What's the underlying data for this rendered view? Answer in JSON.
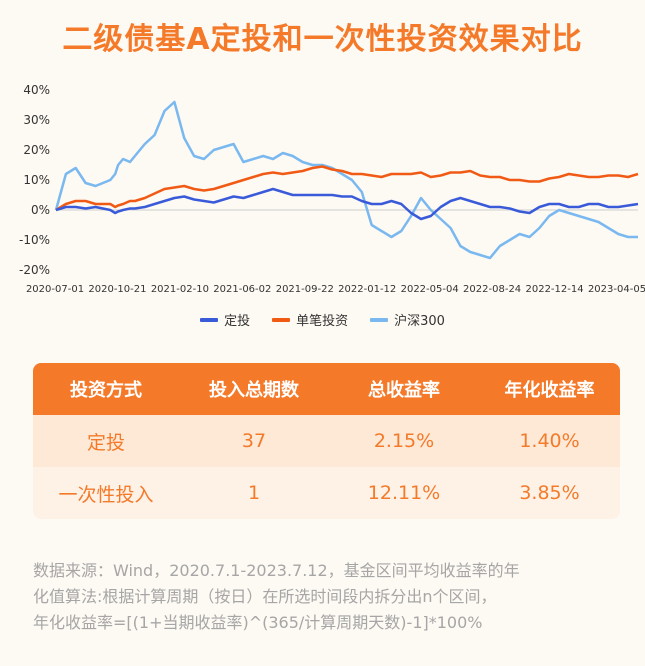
{
  "title": "二级债基A定投和一次性投资效果对比",
  "chart_data": {
    "type": "line",
    "ylim": [
      -20,
      40
    ],
    "yticks": [
      "40%",
      "30%",
      "20%",
      "10%",
      "0%",
      "-10%",
      "-20%"
    ],
    "ytick_values": [
      40,
      30,
      20,
      10,
      0,
      -10,
      -20
    ],
    "xticks": [
      "2020-07-01",
      "2020-10-21",
      "2021-02-10",
      "2021-06-02",
      "2021-09-22",
      "2022-01-12",
      "2022-05-04",
      "2022-08-24",
      "2022-12-14",
      "2023-04-05"
    ],
    "x": [
      0,
      10,
      20,
      30,
      40,
      55,
      60,
      63,
      68,
      75,
      80,
      90,
      100,
      110,
      120,
      130,
      140,
      150,
      160,
      170,
      180,
      190,
      200,
      210,
      220,
      230,
      240,
      250,
      260,
      270,
      280,
      290,
      300,
      310,
      320,
      330,
      340,
      350,
      360,
      370,
      380,
      390,
      400,
      410,
      420,
      430,
      440,
      450,
      460,
      470,
      480,
      490,
      500,
      510,
      520,
      530,
      540,
      550,
      560,
      570,
      580,
      590
    ],
    "series": [
      {
        "name": "定投",
        "color": "#3a5bd9",
        "values": [
          0,
          1,
          1,
          0.5,
          1,
          0,
          -1,
          -0.5,
          0,
          0.5,
          0.5,
          1,
          2,
          3,
          4,
          4.5,
          3.5,
          3,
          2.5,
          3.5,
          4.5,
          4,
          5,
          6,
          7,
          6,
          5,
          5,
          5,
          5,
          5,
          4.5,
          4.5,
          3,
          2,
          2,
          3,
          2,
          -1,
          -3,
          -2,
          1,
          3,
          4,
          3,
          2,
          1,
          1,
          0.5,
          -0.5,
          -1,
          1,
          2,
          2,
          1,
          1,
          2,
          2,
          1,
          1,
          1.5,
          2
        ]
      },
      {
        "name": "单笔投资",
        "color": "#f05a14",
        "values": [
          0,
          2,
          3,
          3,
          2,
          2,
          1,
          1.5,
          2,
          3,
          3,
          4,
          5.5,
          7,
          7.5,
          8,
          7,
          6.5,
          7,
          8,
          9,
          10,
          11,
          12,
          12.5,
          12,
          12.5,
          13,
          14,
          14.5,
          13.5,
          13,
          12,
          12,
          11.5,
          11,
          12,
          12,
          12,
          12.5,
          11,
          11.5,
          12.5,
          12.5,
          13,
          11.5,
          11,
          11,
          10,
          10,
          9.5,
          9.5,
          10.5,
          11,
          12,
          11.5,
          11,
          11,
          11.5,
          11.5,
          11,
          12
        ]
      },
      {
        "name": "沪深300",
        "color": "#7ab8f0",
        "values": [
          0,
          12,
          14,
          9,
          8,
          10,
          12,
          15,
          17,
          16,
          18,
          22,
          25,
          33,
          36,
          24,
          18,
          17,
          20,
          21,
          22,
          16,
          17,
          18,
          17,
          19,
          18,
          16,
          15,
          15,
          14,
          12,
          10,
          6,
          -5,
          -7,
          -9,
          -7,
          -2,
          4,
          0,
          -3,
          -6,
          -12,
          -14,
          -15,
          -16,
          -12,
          -10,
          -8,
          -9,
          -6,
          -2,
          0,
          -1,
          -2,
          -3,
          -4,
          -6,
          -8,
          -9,
          -9
        ]
      }
    ]
  },
  "legend": {
    "items": [
      {
        "label": "定投",
        "color": "#3a5bd9"
      },
      {
        "label": "单笔投资",
        "color": "#f05a14"
      },
      {
        "label": "沪深300",
        "color": "#7ab8f0"
      }
    ]
  },
  "table": {
    "headers": [
      "投资方式",
      "投入总期数",
      "总收益率",
      "年化收益率"
    ],
    "rows": [
      [
        "定投",
        "37",
        "2.15%",
        "1.40%"
      ],
      [
        "一次性投入",
        "1",
        "12.11%",
        "3.85%"
      ]
    ]
  },
  "footnote": {
    "line1": "数据来源：Wind，2020.7.1-2023.7.12，基金区间平均收益率的年",
    "line2": "化值算法:根据计算周期（按日）在所选时间段内拆分出n个区间，",
    "line3": "年化收益率=[(1+当期收益率)^(365/计算周期天数)-1]*100%"
  }
}
